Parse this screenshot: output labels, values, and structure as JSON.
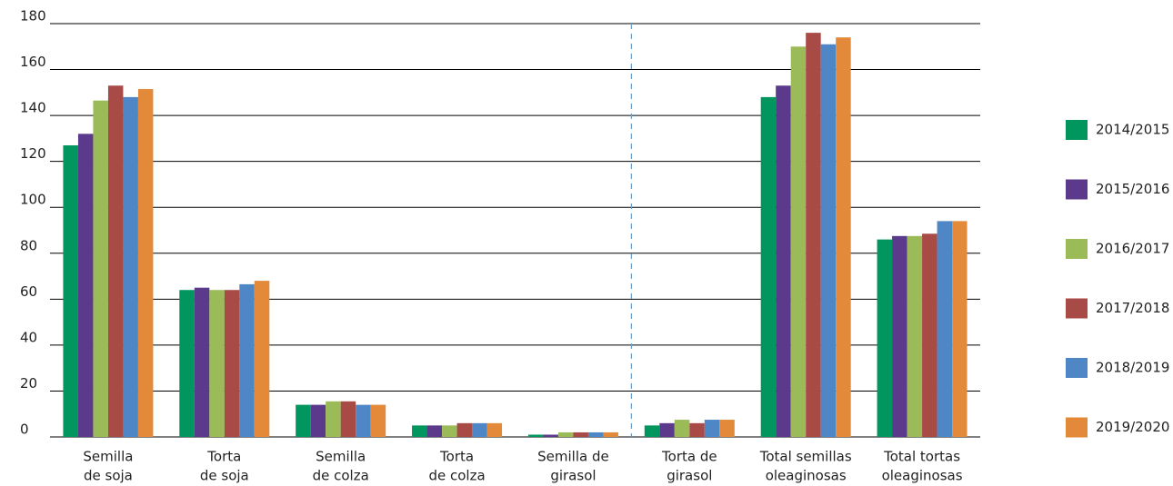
{
  "chart_data": {
    "type": "bar",
    "categories": [
      [
        "Semilla",
        "de soja"
      ],
      [
        "Torta",
        "de soja"
      ],
      [
        "Semilla",
        "de colza"
      ],
      [
        "Torta",
        "de colza"
      ],
      [
        "Semilla de",
        "girasol"
      ],
      [
        "Torta de",
        "girasol"
      ],
      [
        "Total semillas",
        "oleaginosas"
      ],
      [
        "Total tortas",
        "oleaginosas"
      ]
    ],
    "series": [
      {
        "name": "2014/2015",
        "color": "#00965e",
        "values": [
          127,
          64,
          14,
          5,
          1,
          5,
          148,
          86
        ]
      },
      {
        "name": "2015/2016",
        "color": "#5b3a8c",
        "values": [
          132,
          65,
          14,
          5,
          1,
          6,
          153,
          87.5
        ]
      },
      {
        "name": "2016/2017",
        "color": "#9bbb59",
        "values": [
          146.5,
          64,
          15.5,
          5,
          2,
          7.5,
          170,
          87.5
        ]
      },
      {
        "name": "2017/2018",
        "color": "#a84b47",
        "values": [
          153,
          64,
          15.5,
          6,
          2,
          6,
          176,
          88.5
        ]
      },
      {
        "name": "2018/2019",
        "color": "#4f86c6",
        "values": [
          148,
          66.5,
          14,
          6,
          2,
          7.5,
          171,
          94
        ]
      },
      {
        "name": "2019/2020",
        "color": "#e3893a",
        "values": [
          151.5,
          68,
          14,
          6,
          2,
          7.5,
          174,
          94
        ]
      }
    ],
    "ylim": [
      0,
      180
    ],
    "yticks": [
      0,
      20,
      40,
      60,
      80,
      100,
      120,
      140,
      160,
      180
    ],
    "grid": true,
    "legend": "right"
  }
}
